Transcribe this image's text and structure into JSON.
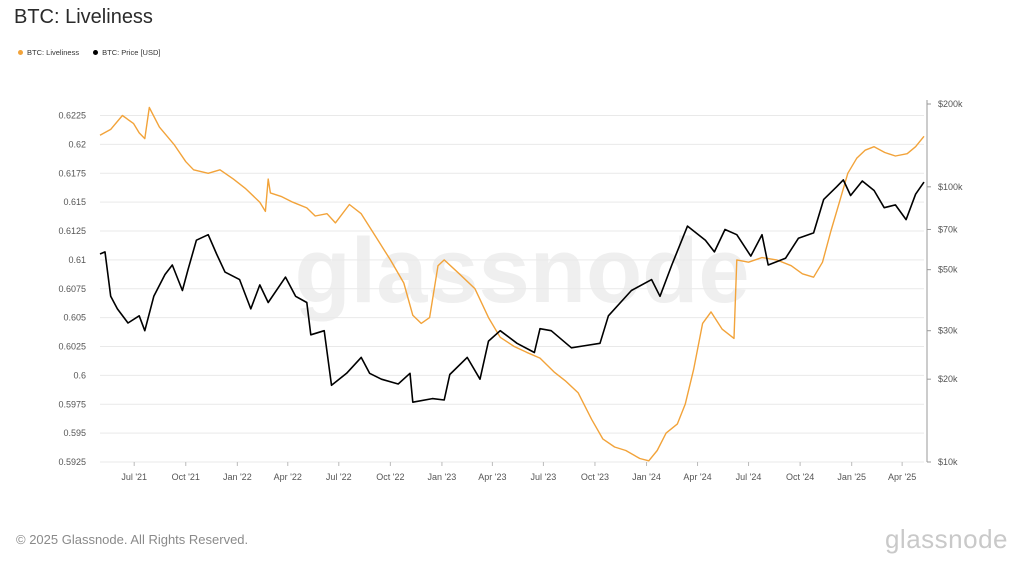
{
  "title": "BTC: Liveliness",
  "footer": {
    "copyright": "© 2025 Glassnode. All Rights Reserved.",
    "logo": "glassnode"
  },
  "watermark": "glassnode",
  "colors": {
    "liveliness": "#f2a33a",
    "price": "#000000",
    "grid": "#e9e9e9",
    "axis": "#555555"
  },
  "chart_data": {
    "type": "line",
    "legend_position": "top-left",
    "grid": true,
    "x_ticks": [
      "Jul '21",
      "Oct '21",
      "Jan '22",
      "Apr '22",
      "Jul '22",
      "Oct '22",
      "Jan '23",
      "Apr '23",
      "Jul '23",
      "Oct '23",
      "Jan '24",
      "Apr '24",
      "Jul '24",
      "Oct '24",
      "Jan '25",
      "Apr '25"
    ],
    "x_range": [
      "2021-05-01",
      "2025-05-10"
    ],
    "y_left": {
      "ticks": [
        "0.6225",
        "0.62",
        "0.6175",
        "0.615",
        "0.6125",
        "0.61",
        "0.6075",
        "0.605",
        "0.6025",
        "0.6",
        "0.5975",
        "0.595",
        "0.5925"
      ],
      "range": [
        0.5925,
        0.6235
      ]
    },
    "y_right": {
      "scale": "log",
      "ticks": [
        {
          "label": "$200k",
          "value": 200000
        },
        {
          "label": "$100k",
          "value": 100000
        },
        {
          "label": "$70k",
          "value": 70000
        },
        {
          "label": "$50k",
          "value": 50000
        },
        {
          "label": "$30k",
          "value": 30000
        },
        {
          "label": "$20k",
          "value": 20000
        },
        {
          "label": "$10k",
          "value": 10000
        }
      ],
      "range": [
        10000,
        200000
      ]
    },
    "series": [
      {
        "name": "BTC: Liveliness",
        "axis": "left",
        "points": [
          [
            "2021-05-01",
            0.6208
          ],
          [
            "2021-05-20",
            0.6213
          ],
          [
            "2021-06-10",
            0.6225
          ],
          [
            "2021-06-30",
            0.6218
          ],
          [
            "2021-07-10",
            0.621
          ],
          [
            "2021-07-20",
            0.6205
          ],
          [
            "2021-07-28",
            0.6232
          ],
          [
            "2021-08-15",
            0.6215
          ],
          [
            "2021-09-10",
            0.62
          ],
          [
            "2021-10-01",
            0.6185
          ],
          [
            "2021-10-15",
            0.6178
          ],
          [
            "2021-11-10",
            0.6175
          ],
          [
            "2021-12-01",
            0.6178
          ],
          [
            "2021-12-25",
            0.617
          ],
          [
            "2022-01-15",
            0.6162
          ],
          [
            "2022-02-10",
            0.615
          ],
          [
            "2022-02-20",
            0.6142
          ],
          [
            "2022-02-25",
            0.617
          ],
          [
            "2022-03-01",
            0.6158
          ],
          [
            "2022-03-20",
            0.6155
          ],
          [
            "2022-04-10",
            0.615
          ],
          [
            "2022-05-05",
            0.6145
          ],
          [
            "2022-05-20",
            0.6138
          ],
          [
            "2022-06-10",
            0.614
          ],
          [
            "2022-06-25",
            0.6132
          ],
          [
            "2022-07-20",
            0.6148
          ],
          [
            "2022-08-10",
            0.614
          ],
          [
            "2022-09-05",
            0.612
          ],
          [
            "2022-10-01",
            0.61
          ],
          [
            "2022-10-25",
            0.608
          ],
          [
            "2022-11-10",
            0.6052
          ],
          [
            "2022-11-25",
            0.6045
          ],
          [
            "2022-12-10",
            0.605
          ],
          [
            "2022-12-25",
            0.6095
          ],
          [
            "2023-01-05",
            0.61
          ],
          [
            "2023-02-01",
            0.6088
          ],
          [
            "2023-03-01",
            0.6075
          ],
          [
            "2023-03-25",
            0.605
          ],
          [
            "2023-04-15",
            0.6033
          ],
          [
            "2023-05-10",
            0.6025
          ],
          [
            "2023-06-01",
            0.602
          ],
          [
            "2023-06-25",
            0.6015
          ],
          [
            "2023-07-20",
            0.6003
          ],
          [
            "2023-08-10",
            0.5995
          ],
          [
            "2023-09-01",
            0.5985
          ],
          [
            "2023-09-25",
            0.5962
          ],
          [
            "2023-10-15",
            0.5945
          ],
          [
            "2023-11-05",
            0.5938
          ],
          [
            "2023-11-25",
            0.5935
          ],
          [
            "2023-12-20",
            0.5928
          ],
          [
            "2024-01-05",
            0.5926
          ],
          [
            "2024-01-20",
            0.5935
          ],
          [
            "2024-02-05",
            0.595
          ],
          [
            "2024-02-25",
            0.5958
          ],
          [
            "2024-03-10",
            0.5975
          ],
          [
            "2024-03-25",
            0.6005
          ],
          [
            "2024-04-10",
            0.6045
          ],
          [
            "2024-04-25",
            0.6055
          ],
          [
            "2024-05-15",
            0.604
          ],
          [
            "2024-06-05",
            0.6032
          ],
          [
            "2024-06-10",
            0.61
          ],
          [
            "2024-07-01",
            0.6098
          ],
          [
            "2024-07-25",
            0.6102
          ],
          [
            "2024-08-20",
            0.61
          ],
          [
            "2024-09-15",
            0.6095
          ],
          [
            "2024-10-05",
            0.6088
          ],
          [
            "2024-10-25",
            0.6085
          ],
          [
            "2024-11-10",
            0.6098
          ],
          [
            "2024-11-25",
            0.6125
          ],
          [
            "2024-12-10",
            0.615
          ],
          [
            "2024-12-25",
            0.6175
          ],
          [
            "2025-01-10",
            0.6188
          ],
          [
            "2025-01-25",
            0.6195
          ],
          [
            "2025-02-10",
            0.6198
          ],
          [
            "2025-03-01",
            0.6193
          ],
          [
            "2025-03-20",
            0.619
          ],
          [
            "2025-04-10",
            0.6192
          ],
          [
            "2025-04-25",
            0.6198
          ],
          [
            "2025-05-10",
            0.6207
          ]
        ]
      },
      {
        "name": "BTC: Price [USD]",
        "axis": "right",
        "points": [
          [
            "2021-05-01",
            57000
          ],
          [
            "2021-05-10",
            58000
          ],
          [
            "2021-05-20",
            40000
          ],
          [
            "2021-06-01",
            36000
          ],
          [
            "2021-06-20",
            32000
          ],
          [
            "2021-07-10",
            34000
          ],
          [
            "2021-07-20",
            30000
          ],
          [
            "2021-08-05",
            40000
          ],
          [
            "2021-08-25",
            48000
          ],
          [
            "2021-09-07",
            52000
          ],
          [
            "2021-09-25",
            42000
          ],
          [
            "2021-10-05",
            50000
          ],
          [
            "2021-10-20",
            64000
          ],
          [
            "2021-11-10",
            67000
          ],
          [
            "2021-11-25",
            57000
          ],
          [
            "2021-12-10",
            49000
          ],
          [
            "2022-01-05",
            46000
          ],
          [
            "2022-01-25",
            36000
          ],
          [
            "2022-02-10",
            44000
          ],
          [
            "2022-02-25",
            38000
          ],
          [
            "2022-03-28",
            47000
          ],
          [
            "2022-04-15",
            40000
          ],
          [
            "2022-05-05",
            38000
          ],
          [
            "2022-05-12",
            29000
          ],
          [
            "2022-06-05",
            30000
          ],
          [
            "2022-06-18",
            19000
          ],
          [
            "2022-07-15",
            21000
          ],
          [
            "2022-08-10",
            24000
          ],
          [
            "2022-08-25",
            21000
          ],
          [
            "2022-09-15",
            20000
          ],
          [
            "2022-10-15",
            19200
          ],
          [
            "2022-11-05",
            21000
          ],
          [
            "2022-11-10",
            16500
          ],
          [
            "2022-12-15",
            17000
          ],
          [
            "2023-01-05",
            16800
          ],
          [
            "2023-01-15",
            20800
          ],
          [
            "2023-02-15",
            24000
          ],
          [
            "2023-03-10",
            20000
          ],
          [
            "2023-03-25",
            27500
          ],
          [
            "2023-04-15",
            30000
          ],
          [
            "2023-05-15",
            27000
          ],
          [
            "2023-06-15",
            25000
          ],
          [
            "2023-06-25",
            30500
          ],
          [
            "2023-07-15",
            30000
          ],
          [
            "2023-08-20",
            26000
          ],
          [
            "2023-09-15",
            26500
          ],
          [
            "2023-10-10",
            27000
          ],
          [
            "2023-10-25",
            34000
          ],
          [
            "2023-12-05",
            42000
          ],
          [
            "2024-01-10",
            46000
          ],
          [
            "2024-01-25",
            40000
          ],
          [
            "2024-02-15",
            52000
          ],
          [
            "2024-03-14",
            72000
          ],
          [
            "2024-04-15",
            64000
          ],
          [
            "2024-05-01",
            58000
          ],
          [
            "2024-05-20",
            70000
          ],
          [
            "2024-06-10",
            67000
          ],
          [
            "2024-07-05",
            56000
          ],
          [
            "2024-07-25",
            67000
          ],
          [
            "2024-08-05",
            52000
          ],
          [
            "2024-09-05",
            55000
          ],
          [
            "2024-09-28",
            65000
          ],
          [
            "2024-10-25",
            68000
          ],
          [
            "2024-11-12",
            90000
          ],
          [
            "2024-12-05",
            100000
          ],
          [
            "2024-12-17",
            106000
          ],
          [
            "2024-12-30",
            93000
          ],
          [
            "2025-01-20",
            105000
          ],
          [
            "2025-02-10",
            97000
          ],
          [
            "2025-02-28",
            84000
          ],
          [
            "2025-03-20",
            86000
          ],
          [
            "2025-04-08",
            76000
          ],
          [
            "2025-04-25",
            94000
          ],
          [
            "2025-05-10",
            104000
          ]
        ]
      }
    ]
  }
}
